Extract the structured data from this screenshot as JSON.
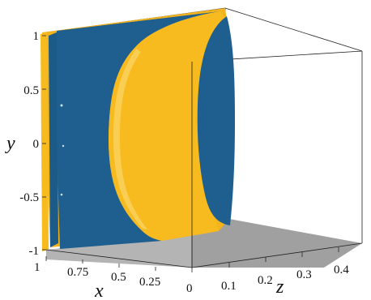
{
  "chart_data": {
    "type": "3d-isosurface",
    "title": "",
    "axes": {
      "x": {
        "label": "x",
        "ticks": [
          "1",
          "0.75",
          "0.5",
          "0.25",
          "0"
        ],
        "range": [
          0,
          1
        ]
      },
      "y": {
        "label": "y",
        "ticks": [
          "1",
          "0.5",
          "0",
          "-0.5",
          "-1"
        ],
        "range": [
          -1,
          1
        ]
      },
      "z": {
        "label": "z",
        "ticks": [
          "0.1",
          "0.2",
          "0.3",
          "0.4"
        ],
        "range": [
          0,
          0.45
        ]
      }
    },
    "surfaces": [
      {
        "color": "#f7bb1f",
        "role": "positive isosurface"
      },
      {
        "color": "#1f5f8f",
        "role": "negative isosurface"
      }
    ],
    "floor_color": "#a0a0a0",
    "grid": false,
    "legend": "none"
  }
}
